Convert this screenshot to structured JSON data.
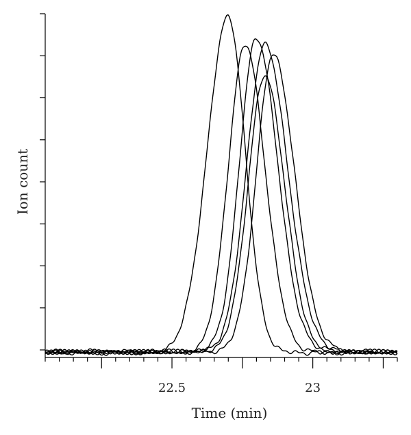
{
  "chart_data": {
    "type": "line",
    "title": "",
    "xlabel": "Time (min)",
    "ylabel": "Ion count",
    "xlim": [
      22.05,
      23.3
    ],
    "ylim": [
      -0.06,
      1.0
    ],
    "x_ticks_major": [
      22.5,
      23
    ],
    "x_tick_labels": [
      "22.5",
      "23"
    ],
    "x_ticks_minor_step": 0.05,
    "x_ticks_medium": [
      22.25,
      22.75,
      23.25
    ],
    "y_ticks": [
      0.0,
      0.125,
      0.25,
      0.375,
      0.5,
      0.625,
      0.75,
      0.875,
      1.0
    ],
    "y_tick_labels": [],
    "grid": false,
    "legend": "none",
    "color": "#000000",
    "series": [
      {
        "peak_time": 22.7,
        "peak_height": 1.0,
        "sigma_left": 0.075,
        "sigma_right": 0.06
      },
      {
        "peak_time": 22.76,
        "peak_height": 0.915,
        "sigma_left": 0.06,
        "sigma_right": 0.07
      },
      {
        "peak_time": 22.8,
        "peak_height": 0.935,
        "sigma_left": 0.06,
        "sigma_right": 0.075
      },
      {
        "peak_time": 22.83,
        "peak_height": 0.915,
        "sigma_left": 0.065,
        "sigma_right": 0.08
      },
      {
        "peak_time": 22.86,
        "peak_height": 0.885,
        "sigma_left": 0.06,
        "sigma_right": 0.075
      },
      {
        "peak_time": 22.83,
        "peak_height": 0.82,
        "sigma_left": 0.06,
        "sigma_right": 0.07
      }
    ]
  }
}
